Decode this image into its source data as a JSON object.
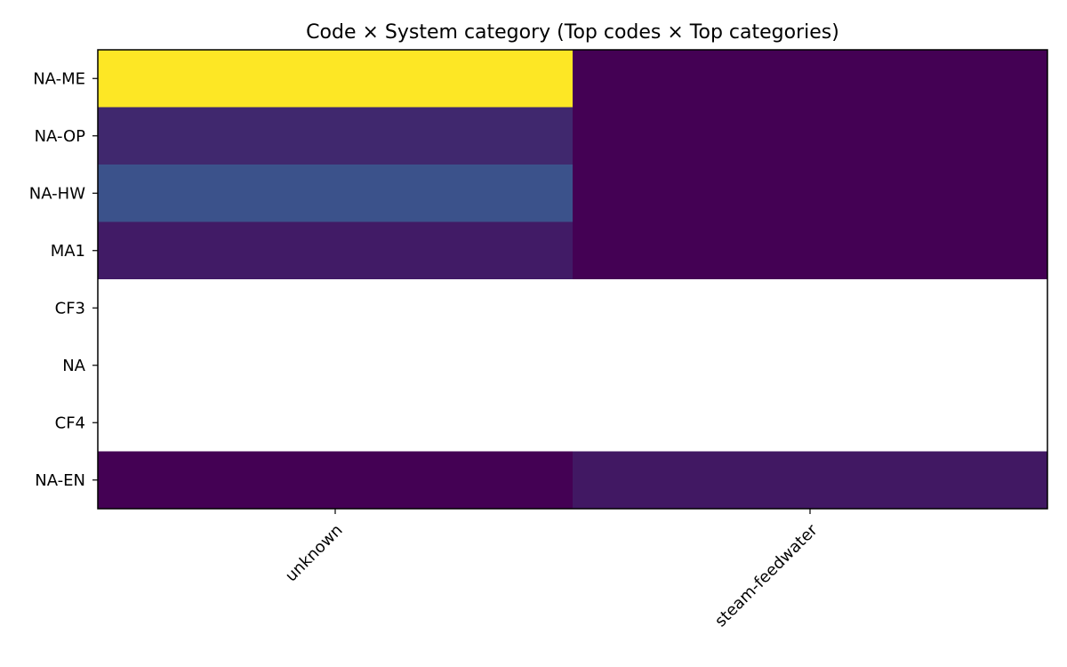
{
  "chart_data": {
    "type": "heatmap",
    "title": "Code × System category (Top codes × Top categories)",
    "xlabel": "",
    "ylabel": "",
    "x_categories": [
      "unknown",
      "steam-feedwater"
    ],
    "y_categories": [
      "NA-ME",
      "NA-OP",
      "NA-HW",
      "MA1",
      "CF3",
      "NA",
      "CF4",
      "NA-EN"
    ],
    "values": [
      [
        1.0,
        0.0
      ],
      [
        0.12,
        0.0
      ],
      [
        0.25,
        0.0
      ],
      [
        0.08,
        0.0
      ],
      [
        null,
        null
      ],
      [
        null,
        null
      ],
      [
        null,
        null
      ],
      [
        0.0,
        0.07
      ]
    ],
    "colormap": "viridis",
    "missing_color": "#ffffff",
    "grid": false,
    "legend": "none"
  }
}
